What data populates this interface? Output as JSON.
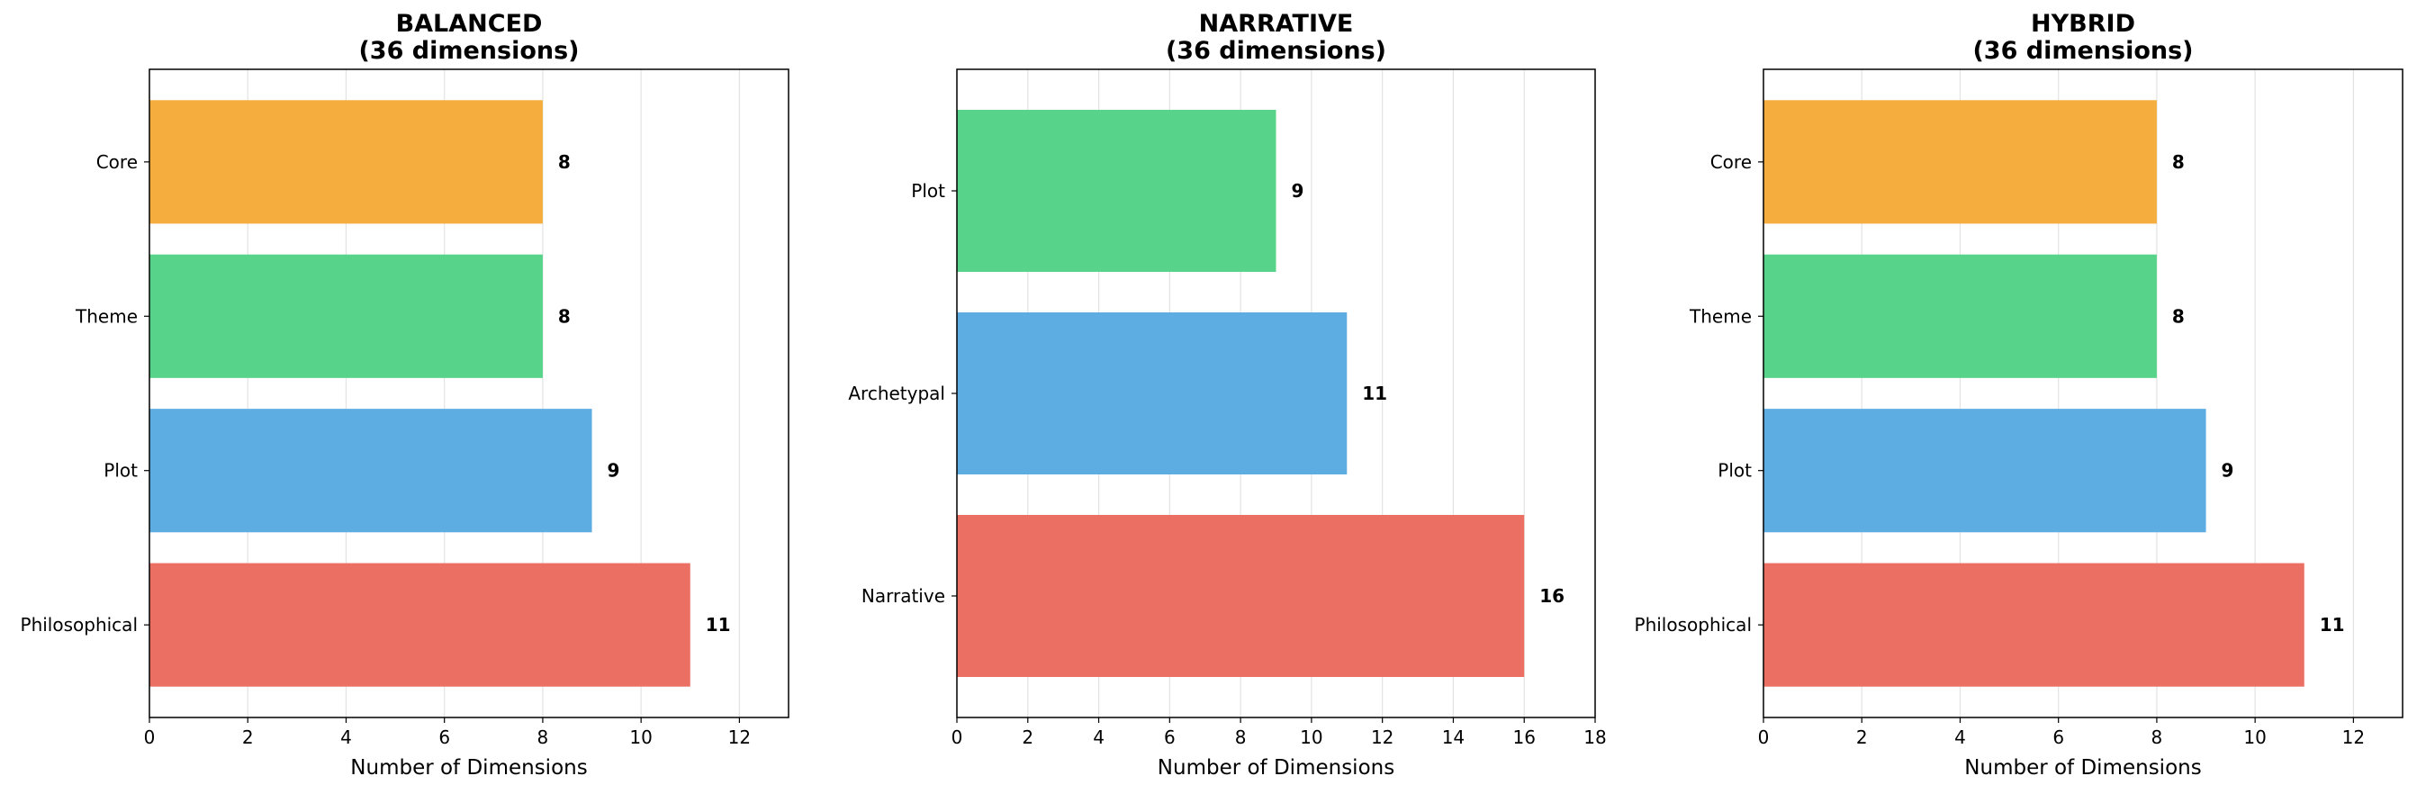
{
  "chart_data": [
    {
      "type": "bar",
      "orientation": "horizontal",
      "title_line1": "BALANCED",
      "title_line2": "(36 dimensions)",
      "xlabel": "Number of Dimensions",
      "ylabel": "",
      "xlim": [
        0,
        13
      ],
      "xticks": [
        "0",
        "2",
        "4",
        "6",
        "8",
        "10",
        "12"
      ],
      "grid": "vertical",
      "categories": [
        "Core",
        "Theme",
        "Plot",
        "Philosophical"
      ],
      "values": [
        8,
        8,
        9,
        11
      ],
      "colors": [
        "#f5ae3e",
        "#58d48a",
        "#5dade2",
        "#eb6f63"
      ]
    },
    {
      "type": "bar",
      "orientation": "horizontal",
      "title_line1": "NARRATIVE",
      "title_line2": "(36 dimensions)",
      "xlabel": "Number of Dimensions",
      "ylabel": "",
      "xlim": [
        0,
        18
      ],
      "xticks": [
        "0",
        "2",
        "4",
        "6",
        "8",
        "10",
        "12",
        "14",
        "16",
        "18"
      ],
      "grid": "vertical",
      "categories": [
        "Plot",
        "Archetypal",
        "Narrative"
      ],
      "values": [
        9,
        11,
        16
      ],
      "colors": [
        "#58d48a",
        "#5dade2",
        "#eb6f63"
      ]
    },
    {
      "type": "bar",
      "orientation": "horizontal",
      "title_line1": "HYBRID",
      "title_line2": "(36 dimensions)",
      "xlabel": "Number of Dimensions",
      "ylabel": "",
      "xlim": [
        0,
        13
      ],
      "xticks": [
        "0",
        "2",
        "4",
        "6",
        "8",
        "10",
        "12"
      ],
      "grid": "vertical",
      "categories": [
        "Core",
        "Theme",
        "Plot",
        "Philosophical"
      ],
      "values": [
        8,
        8,
        9,
        11
      ],
      "colors": [
        "#f5ae3e",
        "#58d48a",
        "#5dade2",
        "#eb6f63"
      ]
    }
  ]
}
